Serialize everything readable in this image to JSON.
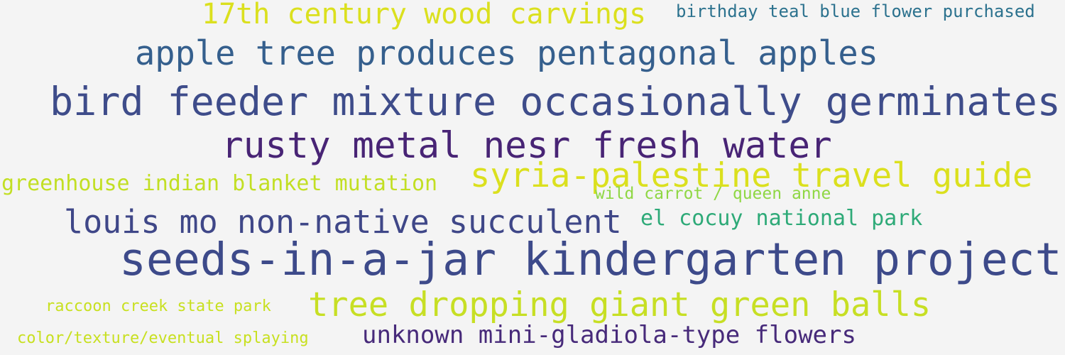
{
  "words": [
    {
      "text": "17th century wood carvings",
      "color": "#dbe01e"
    },
    {
      "text": "birthday teal blue flower purchased",
      "color": "#2c728e"
    },
    {
      "text": "apple tree produces pentagonal apples",
      "color": "#355f8d"
    },
    {
      "text": "bird feeder mixture occasionally germinates",
      "color": "#3e4c8a"
    },
    {
      "text": "rusty metal nesr fresh water",
      "color": "#482475"
    },
    {
      "text": "greenhouse indian blanket mutation",
      "color": "#c2df23"
    },
    {
      "text": "syria-palestine travel guide",
      "color": "#dbe01e"
    },
    {
      "text": "wild carrot / queen anne",
      "color": "#8fd744"
    },
    {
      "text": "louis mo non-native succulent",
      "color": "#3f4788"
    },
    {
      "text": "el cocuy national park",
      "color": "#2eaa78"
    },
    {
      "text": "seeds-in-a-jar kindergarten project",
      "color": "#3d4a8a"
    },
    {
      "text": "raccoon creek state park",
      "color": "#c8e020"
    },
    {
      "text": "tree dropping giant green balls",
      "color": "#c7df24"
    },
    {
      "text": "color/texture/eventual splaying",
      "color": "#c8e020"
    },
    {
      "text": "unknown mini-gladiola-type flowers",
      "color": "#472a7a"
    }
  ]
}
